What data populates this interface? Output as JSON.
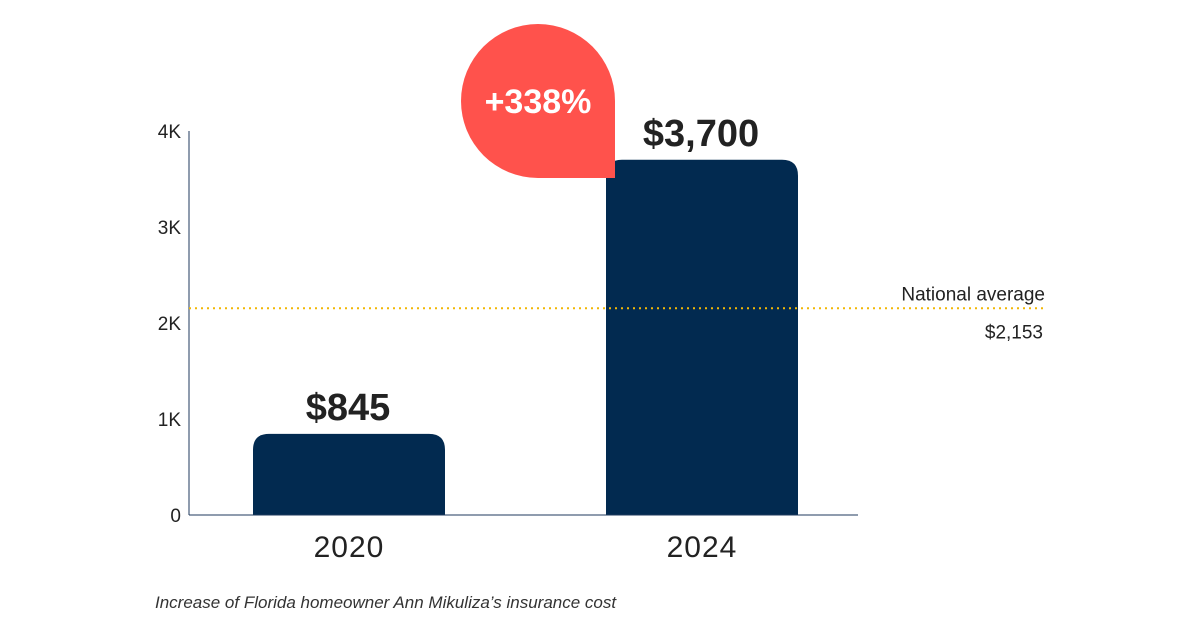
{
  "chart_data": {
    "type": "bar",
    "categories": [
      "2020",
      "2024"
    ],
    "values": [
      845,
      3700
    ],
    "value_labels": [
      "$845",
      "$3,700"
    ],
    "ylim": [
      0,
      4000
    ],
    "y_ticks": [
      0,
      1000,
      2000,
      3000,
      4000
    ],
    "y_tick_labels": [
      "0",
      "1K",
      "2K",
      "3K",
      "4K"
    ],
    "grid": false,
    "bar_color": "#022a50",
    "reference_line": {
      "value": 2153,
      "label": "National average",
      "value_label": "$2,153",
      "color": "#f2b705",
      "style": "dotted"
    },
    "annotation": {
      "text": "+338%",
      "color": "#ff524c",
      "text_color": "#ffffff"
    },
    "caption": "Increase of Florida homeowner Ann Mikuliza’s insurance cost"
  }
}
